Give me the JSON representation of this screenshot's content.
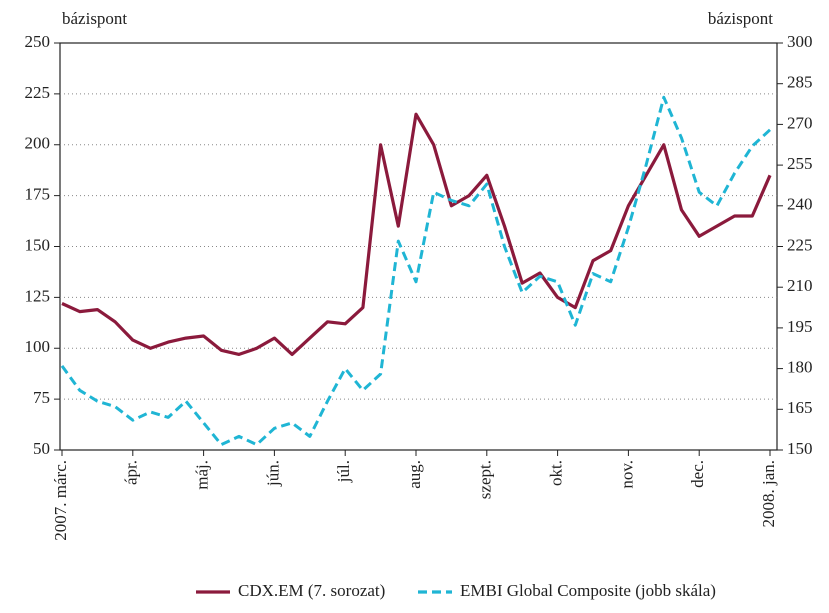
{
  "chart_data": {
    "type": "line",
    "ylabel": "bázispont",
    "y2label": "bázispont",
    "x": [
      "2007. márc.",
      null,
      null,
      null,
      "ápr.",
      null,
      null,
      null,
      "máj.",
      null,
      null,
      null,
      "jún.",
      null,
      null,
      null,
      "júl.",
      null,
      null,
      null,
      "aug.",
      null,
      null,
      null,
      "szept.",
      null,
      null,
      null,
      "okt.",
      null,
      null,
      null,
      "nov.",
      null,
      null,
      null,
      "dec.",
      null,
      null,
      null,
      "2008. jan."
    ],
    "series": [
      {
        "name": "CDX.EM (7. sorozat)",
        "color": "#8b1a3c",
        "dash": false,
        "values": [
          122,
          118,
          119,
          113,
          104,
          100,
          103,
          105,
          106,
          99,
          97,
          100,
          105,
          97,
          105,
          113,
          112,
          120,
          200,
          160,
          215,
          200,
          170,
          175,
          185,
          160,
          132,
          137,
          125,
          120,
          143,
          148,
          170,
          185,
          200,
          168,
          155,
          160,
          165,
          165,
          185
        ]
      },
      {
        "name": "EMBI Global Composite (jobb skála)",
        "color": "#1fb5d4",
        "dash": true,
        "axis": "y2",
        "values": [
          181,
          172,
          168,
          166,
          161,
          164,
          162,
          168,
          160,
          152,
          155,
          152,
          158,
          160,
          155,
          168,
          180,
          172,
          178,
          227,
          212,
          245,
          242,
          240,
          248,
          225,
          208,
          214,
          212,
          196,
          215,
          212,
          232,
          255,
          280,
          265,
          245,
          240,
          252,
          262,
          268
        ]
      }
    ],
    "ylim": [
      50,
      250
    ],
    "yticks": [
      50,
      75,
      100,
      125,
      150,
      175,
      200,
      225,
      250
    ],
    "y2lim": [
      150,
      300
    ],
    "y2ticks": [
      150,
      165,
      180,
      195,
      210,
      225,
      240,
      255,
      270,
      285,
      300
    ],
    "grid": true
  }
}
